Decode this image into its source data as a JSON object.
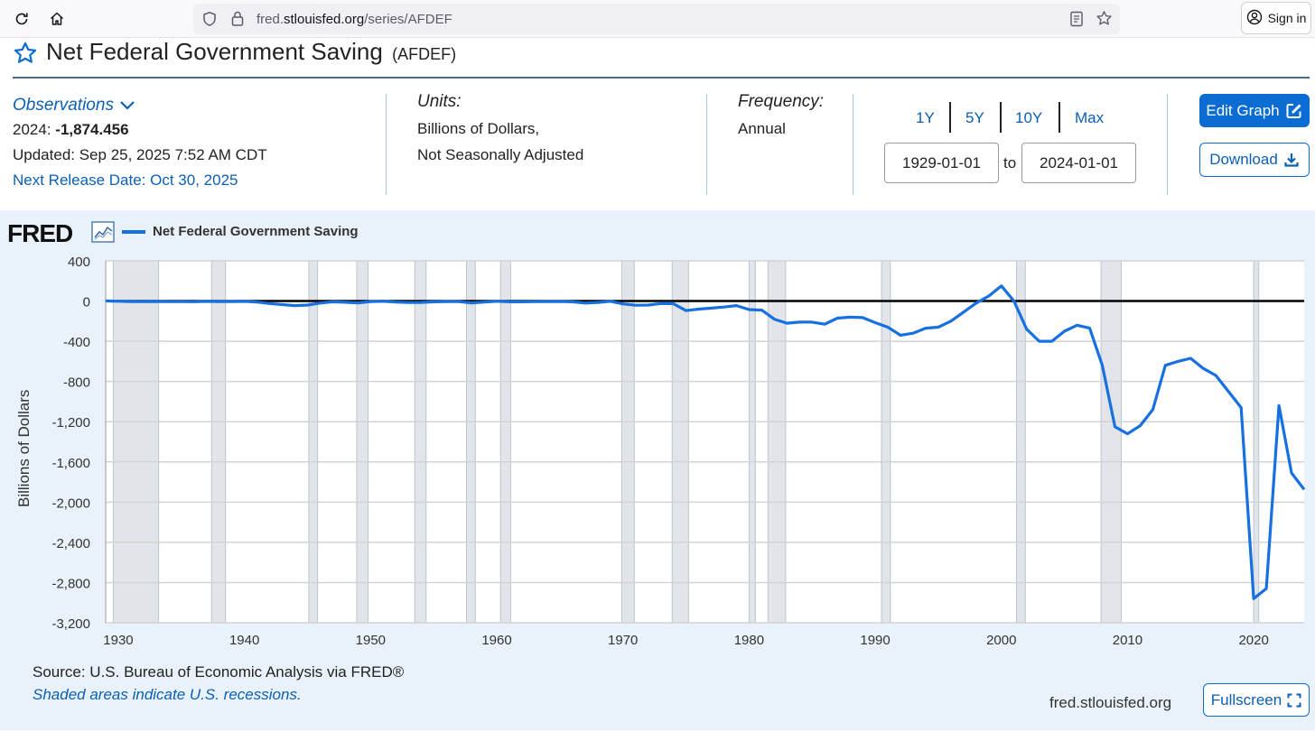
{
  "browser": {
    "url_prefix": "fred.",
    "url_domain": "stlouisfed.org",
    "url_path": "/series/AFDEF",
    "signin_label": "Sign in"
  },
  "header": {
    "title": "Net Federal Government Saving",
    "series_id": "(AFDEF)"
  },
  "observations": {
    "label": "Observations",
    "latest_period": "2024:",
    "latest_value": "-1,874.456",
    "updated": "Updated: Sep 25, 2025 7:52 AM CDT",
    "next_release": "Next Release Date: Oct 30, 2025"
  },
  "units": {
    "label": "Units:",
    "line1": "Billions of Dollars,",
    "line2": "Not Seasonally Adjusted"
  },
  "frequency": {
    "label": "Frequency:",
    "value": "Annual"
  },
  "range": {
    "buttons": [
      "1Y",
      "5Y",
      "10Y",
      "Max"
    ],
    "start": "1929-01-01",
    "to_label": "to",
    "end": "2024-01-01"
  },
  "actions": {
    "edit_graph": "Edit Graph",
    "download": "Download",
    "fullscreen": "Fullscreen"
  },
  "graph": {
    "logo": "FRED",
    "legend": "Net Federal Government Saving",
    "source": "Source: U.S. Bureau of Economic Analysis via FRED®",
    "shading_note": "Shaded areas indicate U.S. recessions.",
    "site": "fred.stlouisfed.org",
    "line_color": "#1670e0"
  },
  "chart_data": {
    "type": "line",
    "title": "Net Federal Government Saving",
    "xlabel": "",
    "ylabel": "Billions of Dollars",
    "xlim": [
      1929,
      2024
    ],
    "ylim": [
      -3200,
      400
    ],
    "yticks": [
      400,
      0,
      -400,
      -800,
      -1200,
      -1600,
      -2000,
      -2400,
      -2800,
      -3200
    ],
    "ytick_labels": [
      "400",
      "0",
      "-400",
      "-800",
      "-1,200",
      "-1,600",
      "-2,000",
      "-2,400",
      "-2,800",
      "-3,200"
    ],
    "xticks": [
      1930,
      1940,
      1950,
      1960,
      1970,
      1980,
      1990,
      2000,
      2010,
      2020
    ],
    "recessions": [
      [
        1929.6,
        1933.2
      ],
      [
        1937.4,
        1938.5
      ],
      [
        1945.1,
        1945.8
      ],
      [
        1948.9,
        1949.8
      ],
      [
        1953.5,
        1954.4
      ],
      [
        1957.6,
        1958.3
      ],
      [
        1960.3,
        1961.1
      ],
      [
        1969.9,
        1970.9
      ],
      [
        1973.9,
        1975.2
      ],
      [
        1980.0,
        1980.5
      ],
      [
        1981.5,
        1982.9
      ],
      [
        1990.5,
        1991.2
      ],
      [
        2001.2,
        2001.9
      ],
      [
        2007.9,
        2009.5
      ],
      [
        2020.0,
        2020.4
      ]
    ],
    "series": [
      {
        "name": "Net Federal Government Saving",
        "x": [
          1929,
          1930,
          1931,
          1932,
          1933,
          1934,
          1935,
          1936,
          1937,
          1938,
          1939,
          1940,
          1941,
          1942,
          1943,
          1944,
          1945,
          1946,
          1947,
          1948,
          1949,
          1950,
          1951,
          1952,
          1953,
          1954,
          1955,
          1956,
          1957,
          1958,
          1959,
          1960,
          1961,
          1962,
          1963,
          1964,
          1965,
          1966,
          1967,
          1968,
          1969,
          1970,
          1971,
          1972,
          1973,
          1974,
          1975,
          1976,
          1977,
          1978,
          1979,
          1980,
          1981,
          1982,
          1983,
          1984,
          1985,
          1986,
          1987,
          1988,
          1989,
          1990,
          1991,
          1992,
          1993,
          1994,
          1995,
          1996,
          1997,
          1998,
          1999,
          2000,
          2001,
          2002,
          2003,
          2004,
          2005,
          2006,
          2007,
          2008,
          2009,
          2010,
          2011,
          2012,
          2013,
          2014,
          2015,
          2016,
          2017,
          2018,
          2019,
          2020,
          2021,
          2022,
          2023,
          2024
        ],
        "values": [
          1,
          -2,
          -5,
          -6,
          -4,
          -6,
          -6,
          -7,
          -3,
          -5,
          -5,
          -3,
          -10,
          -25,
          -35,
          -45,
          -40,
          -20,
          -8,
          -12,
          -18,
          -5,
          -2,
          -10,
          -15,
          -14,
          -8,
          -5,
          -6,
          -18,
          -10,
          -2,
          -8,
          -8,
          -6,
          -5,
          -4,
          -8,
          -20,
          -14,
          -2,
          -28,
          -42,
          -40,
          -25,
          -26,
          -95,
          -80,
          -70,
          -60,
          -45,
          -85,
          -90,
          -180,
          -220,
          -210,
          -210,
          -230,
          -170,
          -160,
          -165,
          -215,
          -260,
          -340,
          -320,
          -270,
          -260,
          -200,
          -110,
          -20,
          50,
          150,
          0,
          -280,
          -400,
          -400,
          -300,
          -240,
          -270,
          -640,
          -1250,
          -1320,
          -1240,
          -1080,
          -640,
          -600,
          -570,
          -670,
          -740,
          -900,
          -1060,
          -2960,
          -2860,
          -1040,
          -1710,
          -1874
        ]
      }
    ]
  }
}
